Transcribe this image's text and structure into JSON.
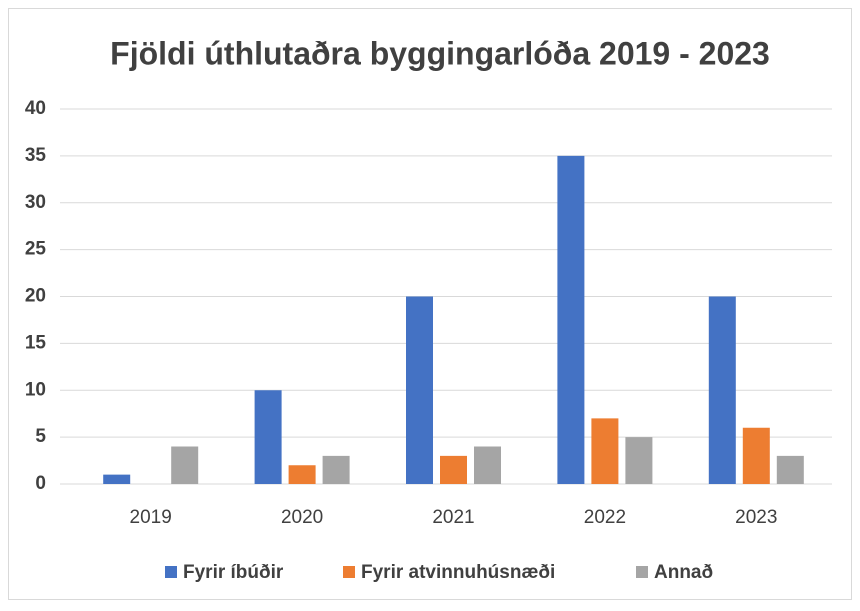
{
  "chart_data": {
    "type": "bar",
    "title": "Fjöldi úthlutaðra byggingarlóða 2019 - 2023",
    "categories": [
      "2019",
      "2020",
      "2021",
      "2022",
      "2023"
    ],
    "series": [
      {
        "name": "Fyrir íbúðir",
        "color": "#4472c4",
        "values": [
          1,
          10,
          20,
          35,
          20
        ]
      },
      {
        "name": "Fyrir atvinnuhúsnæði",
        "color": "#ed7d31",
        "values": [
          0,
          2,
          3,
          7,
          6
        ]
      },
      {
        "name": "Annað",
        "color": "#a5a5a5",
        "values": [
          4,
          3,
          4,
          5,
          3
        ]
      }
    ],
    "ylim": [
      0,
      40
    ],
    "yticks": [
      0,
      5,
      10,
      15,
      20,
      25,
      30,
      35,
      40
    ],
    "grid": true,
    "legend": "bottom"
  }
}
